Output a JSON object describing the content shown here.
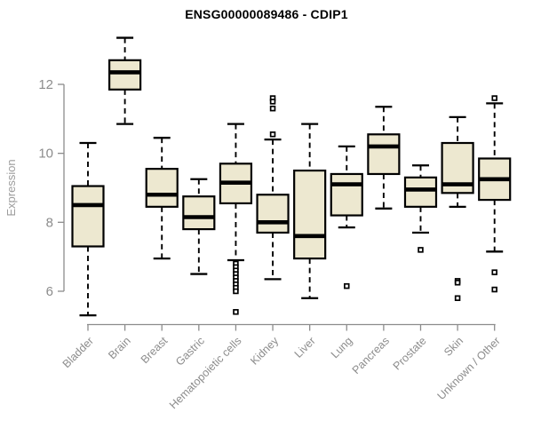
{
  "chart_data": {
    "type": "boxplot",
    "title": "ENSG00000089486 - CDIP1",
    "xlabel": "",
    "ylabel": "Expression",
    "yticks": [
      6,
      8,
      10,
      12
    ],
    "ylim": [
      5.0,
      13.45
    ],
    "grid": false,
    "legend": "none",
    "categories": [
      "Bladder",
      "Brain",
      "Breast",
      "Gastric",
      "Hematopoietic cells",
      "Kidney",
      "Liver",
      "Lung",
      "Pancreas",
      "Prostate",
      "Skin",
      "Unknown / Other"
    ],
    "boxes": [
      {
        "category": "Bladder",
        "whisker_low": 5.3,
        "q1": 7.3,
        "median": 8.5,
        "q3": 9.05,
        "whisker_high": 10.3,
        "outliers": []
      },
      {
        "category": "Brain",
        "whisker_low": 10.85,
        "q1": 11.85,
        "median": 12.35,
        "q3": 12.7,
        "whisker_high": 13.35,
        "outliers": []
      },
      {
        "category": "Breast",
        "whisker_low": 6.95,
        "q1": 8.45,
        "median": 8.8,
        "q3": 9.55,
        "whisker_high": 10.45,
        "outliers": []
      },
      {
        "category": "Gastric",
        "whisker_low": 6.5,
        "q1": 7.8,
        "median": 8.15,
        "q3": 8.75,
        "whisker_high": 9.25,
        "outliers": []
      },
      {
        "category": "Hematopoietic cells",
        "whisker_low": 6.9,
        "q1": 8.55,
        "median": 9.15,
        "q3": 9.7,
        "whisker_high": 10.85,
        "outliers": [
          6.8,
          6.7,
          6.6,
          6.5,
          6.4,
          6.3,
          6.2,
          6.1,
          6.0,
          5.4
        ]
      },
      {
        "category": "Kidney",
        "whisker_low": 6.35,
        "q1": 7.7,
        "median": 8.0,
        "q3": 8.8,
        "whisker_high": 10.4,
        "outliers": [
          11.6,
          11.5,
          11.3,
          10.55
        ]
      },
      {
        "category": "Liver",
        "whisker_low": 5.8,
        "q1": 6.95,
        "median": 7.6,
        "q3": 9.5,
        "whisker_high": 10.85,
        "outliers": []
      },
      {
        "category": "Lung",
        "whisker_low": 7.85,
        "q1": 8.2,
        "median": 9.1,
        "q3": 9.4,
        "whisker_high": 10.2,
        "outliers": [
          6.15
        ]
      },
      {
        "category": "Pancreas",
        "whisker_low": 8.4,
        "q1": 9.4,
        "median": 10.2,
        "q3": 10.55,
        "whisker_high": 11.35,
        "outliers": []
      },
      {
        "category": "Prostate",
        "whisker_low": 7.7,
        "q1": 8.45,
        "median": 8.95,
        "q3": 9.3,
        "whisker_high": 9.65,
        "outliers": [
          7.2
        ]
      },
      {
        "category": "Skin",
        "whisker_low": 8.45,
        "q1": 8.85,
        "median": 9.1,
        "q3": 10.3,
        "whisker_high": 11.05,
        "outliers": [
          6.3,
          6.25,
          5.8
        ]
      },
      {
        "category": "Unknown / Other",
        "whisker_low": 7.15,
        "q1": 8.65,
        "median": 9.25,
        "q3": 9.85,
        "whisker_high": 11.45,
        "outliers": [
          11.6,
          6.55,
          6.05
        ]
      }
    ],
    "colors": {
      "box_fill": "#EDE8D0",
      "box_border": "#000000",
      "median": "#000000",
      "whisker": "#000000",
      "outlier_stroke": "#000000",
      "outlier_fill": "#FFFFFF",
      "axis": "#8C8C8C",
      "tick_label": "#8C8C8C",
      "axis_title": "#9C9C9C",
      "title": "#000000",
      "background": "#FFFFFF"
    }
  }
}
